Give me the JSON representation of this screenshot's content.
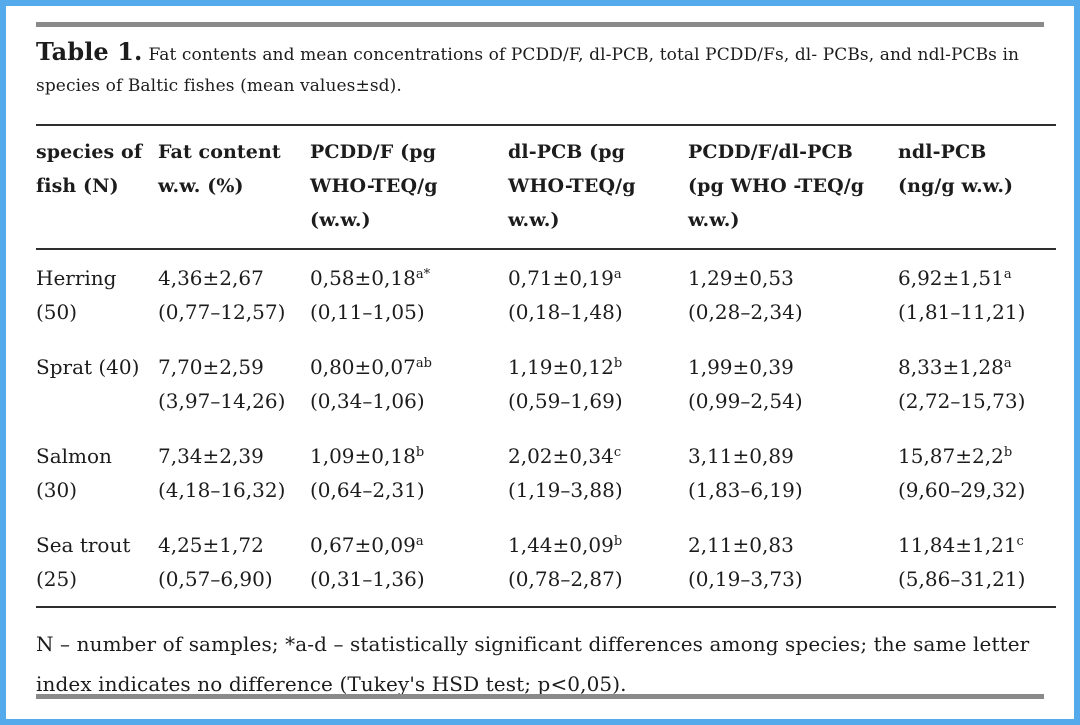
{
  "frame": {
    "border_color": "#54aaea"
  },
  "caption": {
    "label": "Table 1.",
    "text": "Fat contents and mean concentrations of PCDD/F, dl-PCB, total PCDD/Fs, dl- PCBs, and ndl-PCBs in species of Baltic fishes (mean values±sd)."
  },
  "table": {
    "headers": [
      "species of fish (N)",
      "Fat content w.w. (%)",
      "PCDD/F (pg WHO-TEQ/g (w.w.)",
      "dl-PCB (pg WHO-TEQ/g w.w.)",
      "PCDD/F/dl-PCB (pg WHO -TEQ/g w.w.)",
      "ndl-PCB (ng/g w.w.)"
    ],
    "rows": [
      {
        "species_line1": "Herring",
        "species_line2": "(50)",
        "cells": [
          {
            "mean": "4,36±2,67",
            "sup": "",
            "range": "(0,77–12,57)"
          },
          {
            "mean": "0,58±0,18",
            "sup": "a*",
            "range": "(0,11–1,05)"
          },
          {
            "mean": "0,71±0,19",
            "sup": "a",
            "range": "(0,18–1,48)"
          },
          {
            "mean": "1,29±0,53",
            "sup": "",
            "range": "(0,28–2,34)"
          },
          {
            "mean": "6,92±1,51",
            "sup": "a",
            "range": "(1,81–11,21)"
          }
        ]
      },
      {
        "species_line1": "Sprat (40)",
        "species_line2": "",
        "cells": [
          {
            "mean": "7,70±2,59",
            "sup": "",
            "range": "(3,97–14,26)"
          },
          {
            "mean": "0,80±0,07",
            "sup": "ab",
            "range": "(0,34–1,06)"
          },
          {
            "mean": "1,19±0,12",
            "sup": "b",
            "range": "(0,59–1,69)"
          },
          {
            "mean": "1,99±0,39",
            "sup": "",
            "range": "(0,99–2,54)"
          },
          {
            "mean": "8,33±1,28",
            "sup": "a",
            "range": "(2,72–15,73)"
          }
        ]
      },
      {
        "species_line1": "Salmon",
        "species_line2": "(30)",
        "cells": [
          {
            "mean": "7,34±2,39",
            "sup": "",
            "range": "(4,18–16,32)"
          },
          {
            "mean": "1,09±0,18",
            "sup": "b",
            "range": "(0,64–2,31)"
          },
          {
            "mean": "2,02±0,34",
            "sup": "c",
            "range": "(1,19–3,88)"
          },
          {
            "mean": "3,11±0,89",
            "sup": "",
            "range": "(1,83–6,19)"
          },
          {
            "mean": "15,87±2,2",
            "sup": "b",
            "range": "(9,60–29,32)"
          }
        ]
      },
      {
        "species_line1": "Sea trout",
        "species_line2": "(25)",
        "cells": [
          {
            "mean": "4,25±1,72",
            "sup": "",
            "range": "(0,57–6,90)"
          },
          {
            "mean": "0,67±0,09",
            "sup": "a",
            "range": "(0,31–1,36)"
          },
          {
            "mean": "1,44±0,09",
            "sup": "b",
            "range": "(0,78–2,87)"
          },
          {
            "mean": "2,11±0,83",
            "sup": "",
            "range": "(0,19–3,73)"
          },
          {
            "mean": "11,84±1,21",
            "sup": "c",
            "range": "(5,86–31,21)"
          }
        ]
      }
    ]
  },
  "footnote": "N – number of samples; *a-d – statistically significant differences among species; the same letter index indicates no difference (Tukey's HSD test; p<0,05)."
}
